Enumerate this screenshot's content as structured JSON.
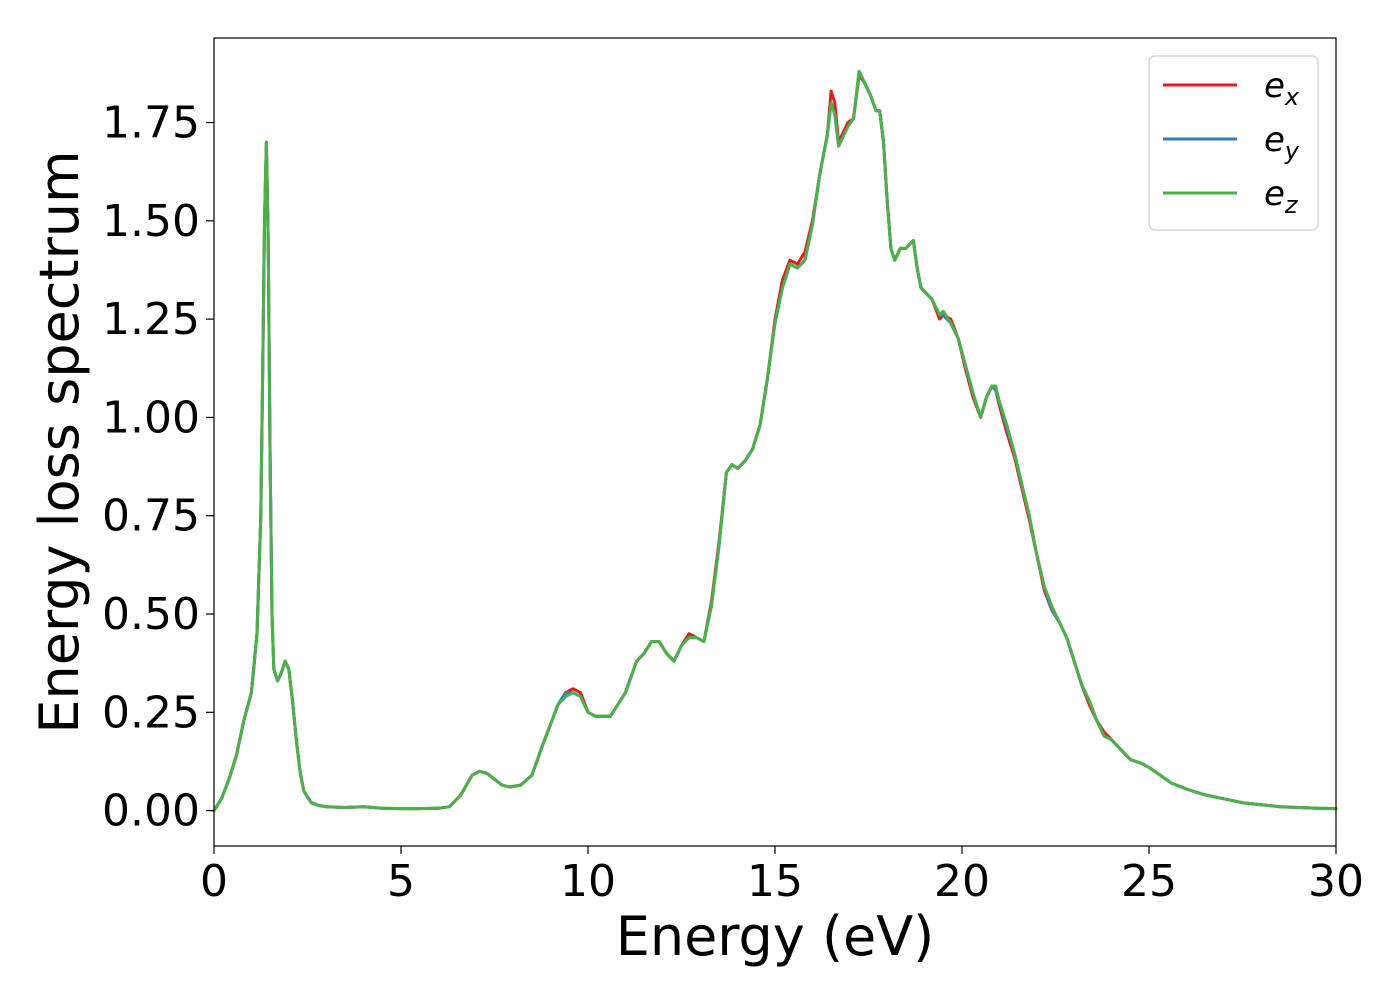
{
  "chart_data": {
    "type": "line",
    "title": "",
    "xlabel": "Energy (eV)",
    "ylabel": "Energy loss spectrum",
    "xlim": [
      0,
      30
    ],
    "ylim": [
      -0.09,
      1.965
    ],
    "xticks": [
      "0",
      "5",
      "10",
      "15",
      "20",
      "25",
      "30"
    ],
    "yticks": [
      "0.00",
      "0.25",
      "0.50",
      "0.75",
      "1.00",
      "1.25",
      "1.50",
      "1.75"
    ],
    "grid": false,
    "legend_position": "top-right",
    "legend": [
      {
        "base": "e",
        "sub": "x",
        "color": "#e41a1c"
      },
      {
        "base": "e",
        "sub": "y",
        "color": "#377eb8"
      },
      {
        "base": "e",
        "sub": "z",
        "color": "#4daf4a"
      }
    ],
    "x": [
      0,
      0.2,
      0.4,
      0.6,
      0.8,
      1.0,
      1.15,
      1.25,
      1.3,
      1.35,
      1.4,
      1.45,
      1.5,
      1.55,
      1.6,
      1.7,
      1.8,
      1.9,
      2.0,
      2.1,
      2.2,
      2.3,
      2.4,
      2.6,
      2.8,
      3.0,
      3.5,
      4.0,
      4.5,
      5.0,
      5.5,
      6.0,
      6.3,
      6.6,
      6.9,
      7.1,
      7.3,
      7.5,
      7.7,
      7.9,
      8.2,
      8.5,
      8.8,
      9.0,
      9.2,
      9.4,
      9.6,
      9.8,
      10.0,
      10.2,
      10.4,
      10.6,
      10.8,
      11.0,
      11.3,
      11.5,
      11.7,
      11.9,
      12.1,
      12.3,
      12.5,
      12.7,
      12.9,
      13.1,
      13.3,
      13.5,
      13.7,
      13.85,
      14.0,
      14.2,
      14.4,
      14.6,
      14.8,
      15.0,
      15.2,
      15.4,
      15.6,
      15.8,
      16.0,
      16.2,
      16.4,
      16.5,
      16.6,
      16.7,
      16.8,
      16.95,
      17.1,
      17.25,
      17.4,
      17.55,
      17.7,
      17.8,
      17.9,
      18.0,
      18.1,
      18.2,
      18.35,
      18.5,
      18.6,
      18.7,
      18.8,
      18.9,
      19.0,
      19.2,
      19.4,
      19.5,
      19.7,
      19.9,
      20.1,
      20.3,
      20.5,
      20.65,
      20.8,
      20.9,
      21.0,
      21.2,
      21.4,
      21.6,
      21.8,
      22.0,
      22.2,
      22.4,
      22.6,
      22.8,
      23.0,
      23.2,
      23.4,
      23.6,
      23.8,
      24.0,
      24.2,
      24.5,
      24.8,
      25.0,
      25.3,
      25.6,
      26.0,
      26.5,
      27.0,
      27.5,
      28.0,
      28.5,
      29.0,
      29.5,
      30.0
    ],
    "series": [
      {
        "name": "e_x",
        "color": "#e41a1c",
        "values": [
          0.0,
          0.03,
          0.08,
          0.14,
          0.23,
          0.3,
          0.45,
          0.75,
          1.1,
          1.5,
          1.7,
          1.45,
          0.9,
          0.5,
          0.36,
          0.33,
          0.35,
          0.38,
          0.36,
          0.28,
          0.18,
          0.1,
          0.05,
          0.02,
          0.013,
          0.01,
          0.008,
          0.01,
          0.006,
          0.005,
          0.005,
          0.006,
          0.01,
          0.04,
          0.09,
          0.1,
          0.095,
          0.08,
          0.065,
          0.06,
          0.065,
          0.09,
          0.17,
          0.22,
          0.27,
          0.3,
          0.31,
          0.3,
          0.25,
          0.24,
          0.24,
          0.24,
          0.27,
          0.3,
          0.38,
          0.4,
          0.43,
          0.43,
          0.4,
          0.38,
          0.42,
          0.45,
          0.44,
          0.43,
          0.53,
          0.68,
          0.86,
          0.88,
          0.87,
          0.89,
          0.92,
          0.98,
          1.1,
          1.25,
          1.35,
          1.4,
          1.39,
          1.42,
          1.5,
          1.62,
          1.72,
          1.83,
          1.8,
          1.7,
          1.72,
          1.75,
          1.76,
          1.87,
          1.85,
          1.82,
          1.78,
          1.78,
          1.7,
          1.55,
          1.43,
          1.4,
          1.43,
          1.43,
          1.44,
          1.45,
          1.38,
          1.33,
          1.32,
          1.3,
          1.25,
          1.26,
          1.25,
          1.2,
          1.12,
          1.05,
          1.0,
          1.05,
          1.08,
          1.07,
          1.03,
          0.96,
          0.9,
          0.82,
          0.74,
          0.65,
          0.56,
          0.51,
          0.48,
          0.44,
          0.38,
          0.32,
          0.27,
          0.23,
          0.2,
          0.18,
          0.16,
          0.13,
          0.12,
          0.11,
          0.09,
          0.07,
          0.055,
          0.04,
          0.03,
          0.02,
          0.015,
          0.01,
          0.008,
          0.006,
          0.005
        ]
      },
      {
        "name": "e_y",
        "color": "#377eb8",
        "values": [
          0.0,
          0.03,
          0.08,
          0.14,
          0.23,
          0.3,
          0.45,
          0.75,
          1.1,
          1.5,
          1.7,
          1.45,
          0.9,
          0.5,
          0.36,
          0.33,
          0.35,
          0.38,
          0.36,
          0.28,
          0.18,
          0.1,
          0.05,
          0.02,
          0.013,
          0.01,
          0.008,
          0.01,
          0.006,
          0.005,
          0.005,
          0.006,
          0.01,
          0.04,
          0.09,
          0.1,
          0.095,
          0.08,
          0.065,
          0.06,
          0.065,
          0.09,
          0.17,
          0.22,
          0.27,
          0.3,
          0.3,
          0.29,
          0.25,
          0.24,
          0.24,
          0.24,
          0.27,
          0.3,
          0.38,
          0.4,
          0.43,
          0.43,
          0.4,
          0.38,
          0.42,
          0.44,
          0.44,
          0.43,
          0.52,
          0.67,
          0.86,
          0.88,
          0.87,
          0.89,
          0.92,
          0.98,
          1.1,
          1.24,
          1.33,
          1.39,
          1.38,
          1.4,
          1.49,
          1.62,
          1.72,
          1.8,
          1.77,
          1.69,
          1.71,
          1.74,
          1.76,
          1.88,
          1.85,
          1.82,
          1.78,
          1.78,
          1.7,
          1.55,
          1.43,
          1.4,
          1.43,
          1.43,
          1.44,
          1.45,
          1.38,
          1.33,
          1.32,
          1.3,
          1.26,
          1.26,
          1.24,
          1.2,
          1.13,
          1.06,
          1.0,
          1.05,
          1.08,
          1.07,
          1.04,
          0.97,
          0.91,
          0.83,
          0.75,
          0.65,
          0.57,
          0.51,
          0.48,
          0.44,
          0.38,
          0.32,
          0.28,
          0.23,
          0.19,
          0.18,
          0.16,
          0.13,
          0.12,
          0.11,
          0.09,
          0.07,
          0.055,
          0.04,
          0.03,
          0.02,
          0.015,
          0.01,
          0.008,
          0.006,
          0.005
        ]
      },
      {
        "name": "e_z",
        "color": "#4daf4a",
        "values": [
          0.0,
          0.03,
          0.08,
          0.14,
          0.23,
          0.3,
          0.45,
          0.75,
          1.1,
          1.5,
          1.7,
          1.45,
          0.9,
          0.5,
          0.36,
          0.33,
          0.35,
          0.38,
          0.36,
          0.28,
          0.18,
          0.1,
          0.05,
          0.02,
          0.013,
          0.01,
          0.008,
          0.01,
          0.006,
          0.005,
          0.005,
          0.006,
          0.01,
          0.04,
          0.09,
          0.1,
          0.095,
          0.08,
          0.065,
          0.06,
          0.065,
          0.09,
          0.17,
          0.22,
          0.27,
          0.29,
          0.3,
          0.29,
          0.25,
          0.24,
          0.24,
          0.24,
          0.27,
          0.3,
          0.38,
          0.4,
          0.43,
          0.43,
          0.4,
          0.38,
          0.42,
          0.44,
          0.44,
          0.43,
          0.52,
          0.67,
          0.86,
          0.88,
          0.87,
          0.89,
          0.92,
          0.98,
          1.1,
          1.24,
          1.33,
          1.39,
          1.38,
          1.4,
          1.49,
          1.62,
          1.72,
          1.8,
          1.77,
          1.69,
          1.71,
          1.74,
          1.76,
          1.88,
          1.85,
          1.82,
          1.78,
          1.78,
          1.7,
          1.55,
          1.43,
          1.4,
          1.43,
          1.43,
          1.44,
          1.45,
          1.38,
          1.33,
          1.32,
          1.3,
          1.26,
          1.27,
          1.24,
          1.2,
          1.13,
          1.06,
          1.0,
          1.05,
          1.08,
          1.08,
          1.04,
          0.98,
          0.91,
          0.83,
          0.75,
          0.65,
          0.57,
          0.52,
          0.48,
          0.44,
          0.38,
          0.32,
          0.28,
          0.23,
          0.19,
          0.18,
          0.16,
          0.13,
          0.12,
          0.11,
          0.09,
          0.07,
          0.055,
          0.04,
          0.03,
          0.02,
          0.015,
          0.01,
          0.008,
          0.006,
          0.005
        ]
      }
    ]
  }
}
